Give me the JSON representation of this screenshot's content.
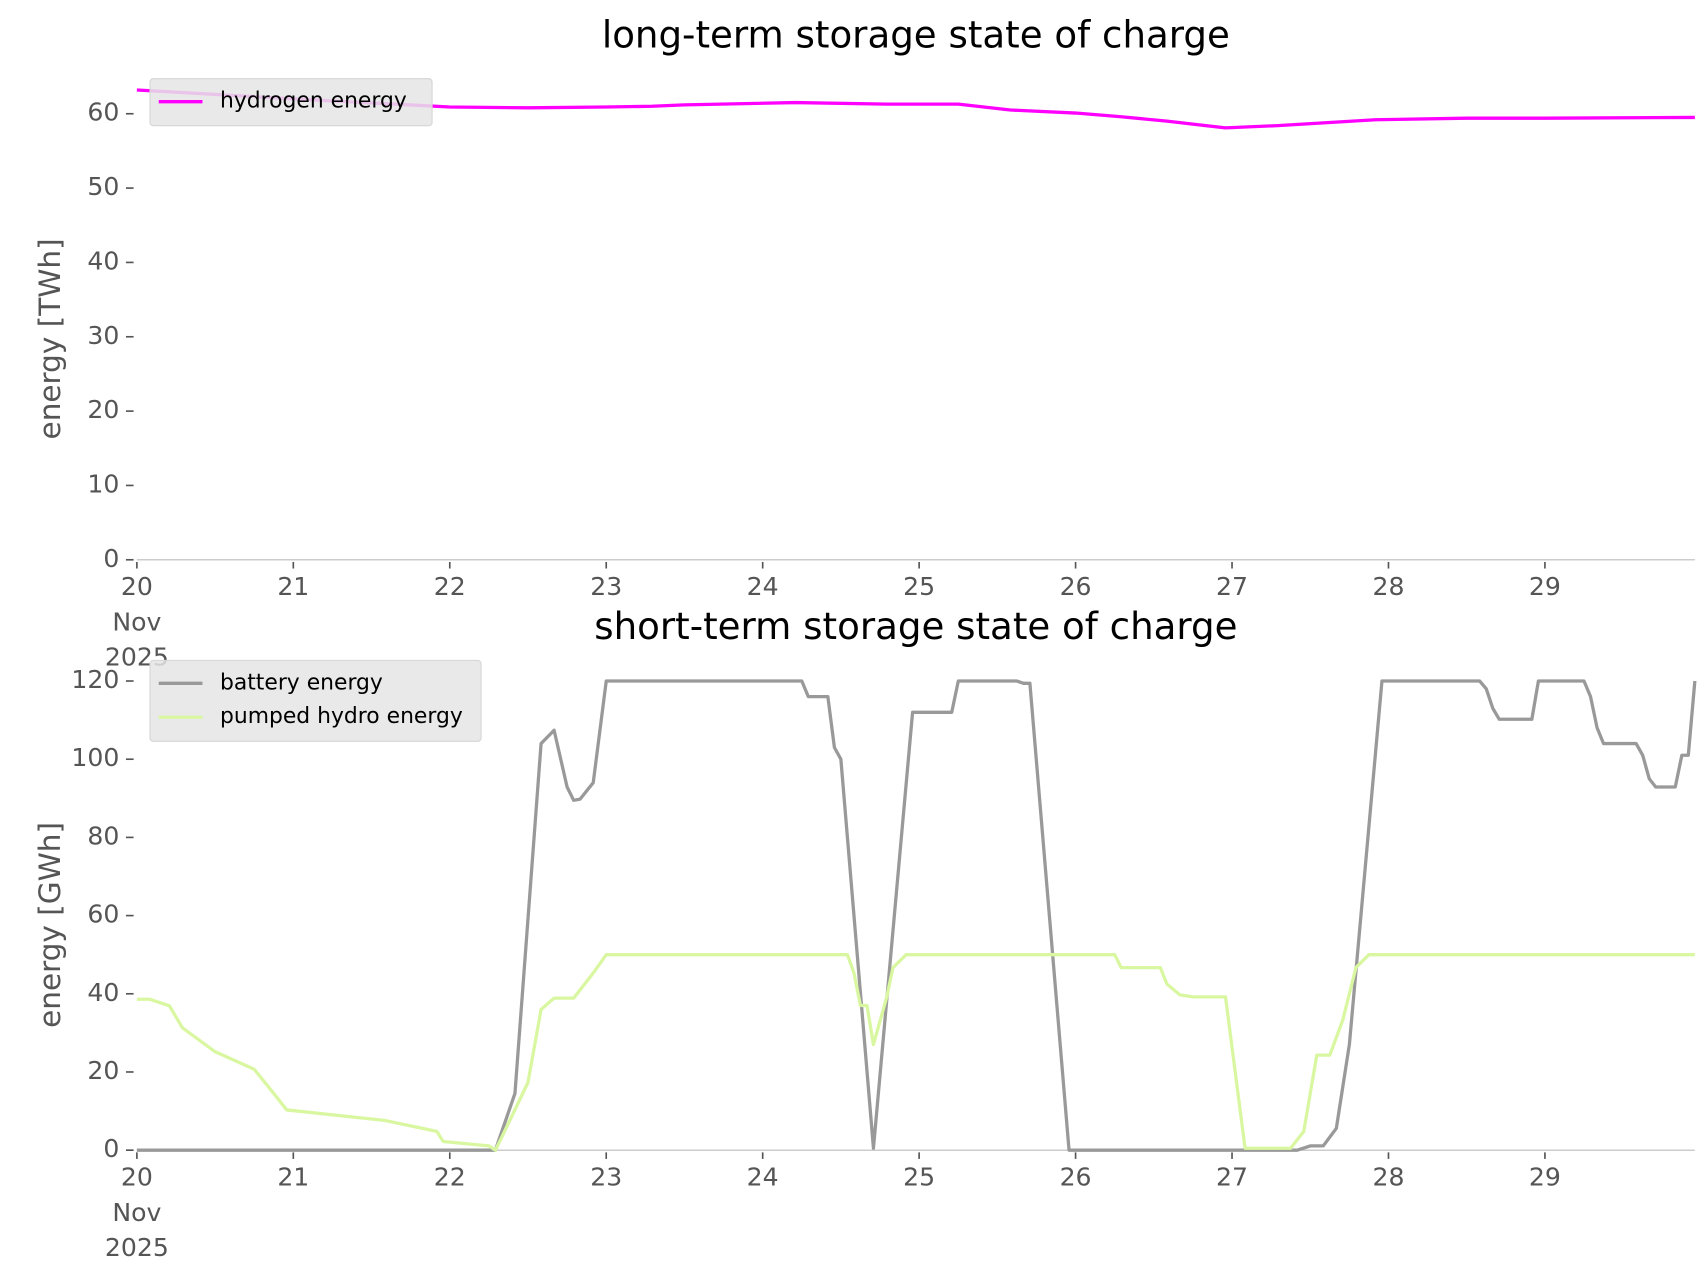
{
  "chart_data": [
    {
      "type": "line",
      "title": "long-term storage state of charge",
      "ylabel": "energy [TWh]",
      "xlim": [
        "2025-11-20T00:00",
        "2025-11-29T23:00"
      ],
      "xticks": [
        {
          "value": "2025-11-20T00:00",
          "label": "20\nNov\n2025"
        },
        {
          "value": "2025-11-21T00:00",
          "label": "21"
        },
        {
          "value": "2025-11-22T00:00",
          "label": "22"
        },
        {
          "value": "2025-11-23T00:00",
          "label": "23"
        },
        {
          "value": "2025-11-24T00:00",
          "label": "24"
        },
        {
          "value": "2025-11-25T00:00",
          "label": "25"
        },
        {
          "value": "2025-11-26T00:00",
          "label": "26"
        },
        {
          "value": "2025-11-27T00:00",
          "label": "27"
        },
        {
          "value": "2025-11-28T00:00",
          "label": "28"
        },
        {
          "value": "2025-11-29T00:00",
          "label": "29"
        }
      ],
      "ylim": [
        0,
        65.3
      ],
      "yticks": [
        0,
        10,
        20,
        30,
        40,
        50,
        60
      ],
      "legend": "upper left",
      "series": [
        {
          "name": "hydrogen energy",
          "color": "#ff00ff",
          "x": [
            "2025-11-20T00:00",
            "2025-11-21T00:00",
            "2025-11-22T00:00",
            "2025-11-22T12:00",
            "2025-11-23T00:00",
            "2025-11-23T07:00",
            "2025-11-23T12:00",
            "2025-11-24T05:00",
            "2025-11-24T19:00",
            "2025-11-25T06:00",
            "2025-11-25T14:00",
            "2025-11-26T00:00",
            "2025-11-26T07:00",
            "2025-11-26T14:00",
            "2025-11-26T23:00",
            "2025-11-27T07:00",
            "2025-11-27T22:00",
            "2025-11-28T12:00",
            "2025-11-29T00:00",
            "2025-11-29T23:00"
          ],
          "values": [
            63.2,
            62.0,
            60.9,
            60.8,
            60.9,
            61.0,
            61.2,
            61.5,
            61.3,
            61.3,
            60.5,
            60.1,
            59.6,
            59.0,
            58.1,
            58.4,
            59.2,
            59.4,
            59.4,
            59.5
          ]
        }
      ]
    },
    {
      "type": "line",
      "title": "short-term storage state of charge",
      "ylabel": "energy [GWh]",
      "xlim": [
        "2025-11-20T00:00",
        "2025-11-29T23:00"
      ],
      "xticks": [
        {
          "value": "2025-11-20T00:00",
          "label": "20\nNov\n2025"
        },
        {
          "value": "2025-11-21T00:00",
          "label": "21"
        },
        {
          "value": "2025-11-22T00:00",
          "label": "22"
        },
        {
          "value": "2025-11-23T00:00",
          "label": "23"
        },
        {
          "value": "2025-11-24T00:00",
          "label": "24"
        },
        {
          "value": "2025-11-25T00:00",
          "label": "25"
        },
        {
          "value": "2025-11-26T00:00",
          "label": "26"
        },
        {
          "value": "2025-11-27T00:00",
          "label": "27"
        },
        {
          "value": "2025-11-28T00:00",
          "label": "28"
        },
        {
          "value": "2025-11-29T00:00",
          "label": "29"
        }
      ],
      "ylim": [
        0,
        126.4
      ],
      "yticks": [
        0,
        20,
        40,
        60,
        80,
        100,
        120
      ],
      "legend": "upper left",
      "series": [
        {
          "name": "battery energy",
          "color": "#999999",
          "x": [
            "2025-11-20T00:00",
            "2025-11-22T07:00",
            "2025-11-22T10:00",
            "2025-11-22T14:00",
            "2025-11-22T16:00",
            "2025-11-22T18:00",
            "2025-11-22T19:00",
            "2025-11-22T20:00",
            "2025-11-22T22:00",
            "2025-11-23T00:00",
            "2025-11-24T06:00",
            "2025-11-24T07:00",
            "2025-11-24T10:00",
            "2025-11-24T11:00",
            "2025-11-24T12:00",
            "2025-11-24T17:00",
            "2025-11-24T23:00",
            "2025-11-25T05:00",
            "2025-11-25T06:00",
            "2025-11-25T15:00",
            "2025-11-25T16:00",
            "2025-11-25T17:00",
            "2025-11-25T23:00",
            "2025-11-27T10:00",
            "2025-11-27T12:00",
            "2025-11-27T14:00",
            "2025-11-27T16:00",
            "2025-11-27T18:00",
            "2025-11-27T23:00",
            "2025-11-28T14:00",
            "2025-11-28T15:00",
            "2025-11-28T16:00",
            "2025-11-28T17:00",
            "2025-11-28T22:00",
            "2025-11-28T23:00",
            "2025-11-29T06:00",
            "2025-11-29T07:00",
            "2025-11-29T08:00",
            "2025-11-29T09:00",
            "2025-11-29T14:00",
            "2025-11-29T15:00",
            "2025-11-29T16:00",
            "2025-11-29T17:00",
            "2025-11-29T20:00",
            "2025-11-29T21:00",
            "2025-11-29T22:00",
            "2025-11-29T23:00"
          ],
          "values": [
            0,
            0,
            14.5,
            104,
            107.4,
            92.9,
            89.5,
            89.8,
            94,
            120,
            120,
            116,
            116,
            103,
            100,
            0.5,
            112,
            112,
            120,
            120,
            119.4,
            119.4,
            0,
            0,
            1.1,
            1.1,
            5.6,
            27,
            120,
            120,
            118,
            113,
            110.2,
            110.2,
            120,
            120,
            116,
            108,
            104,
            104,
            101,
            95,
            92.9,
            92.9,
            101,
            101,
            120
          ]
        },
        {
          "name": "pumped hydro energy",
          "color": "#d9f7a0",
          "x": [
            "2025-11-20T00:00",
            "2025-11-20T02:00",
            "2025-11-20T05:00",
            "2025-11-20T07:00",
            "2025-11-20T12:00",
            "2025-11-20T18:00",
            "2025-11-20T21:00",
            "2025-11-20T23:00",
            "2025-11-21T14:00",
            "2025-11-21T22:00",
            "2025-11-21T23:00",
            "2025-11-22T06:00",
            "2025-11-22T07:00",
            "2025-11-22T08:00",
            "2025-11-22T12:00",
            "2025-11-22T14:00",
            "2025-11-22T16:00",
            "2025-11-22T19:00",
            "2025-11-22T20:00",
            "2025-11-22T22:00",
            "2025-11-23T00:00",
            "2025-11-24T13:00",
            "2025-11-24T14:00",
            "2025-11-24T15:00",
            "2025-11-24T16:00",
            "2025-11-24T17:00",
            "2025-11-24T19:00",
            "2025-11-24T20:00",
            "2025-11-24T22:00",
            "2025-11-26T06:00",
            "2025-11-26T07:00",
            "2025-11-26T13:00",
            "2025-11-26T14:00",
            "2025-11-26T16:00",
            "2025-11-26T18:00",
            "2025-11-26T23:00",
            "2025-11-27T02:00",
            "2025-11-27T09:00",
            "2025-11-27T11:00",
            "2025-11-27T13:00",
            "2025-11-27T15:00",
            "2025-11-27T17:00",
            "2025-11-27T19:00",
            "2025-11-27T21:00",
            "2025-11-29T23:00"
          ],
          "values": [
            38.6,
            38.6,
            36.9,
            31.3,
            25.2,
            20.7,
            14.5,
            10.3,
            7.6,
            4.8,
            2.2,
            1.1,
            0,
            3.4,
            17.3,
            36,
            38.9,
            38.9,
            41,
            45.3,
            50,
            50,
            45.3,
            37,
            37,
            27,
            39,
            46.7,
            50,
            50,
            46.7,
            46.7,
            42.5,
            39.7,
            39.2,
            39.2,
            0.5,
            0.5,
            4.8,
            24.3,
            24.3,
            33.3,
            46.7,
            50,
            50
          ]
        }
      ]
    }
  ]
}
